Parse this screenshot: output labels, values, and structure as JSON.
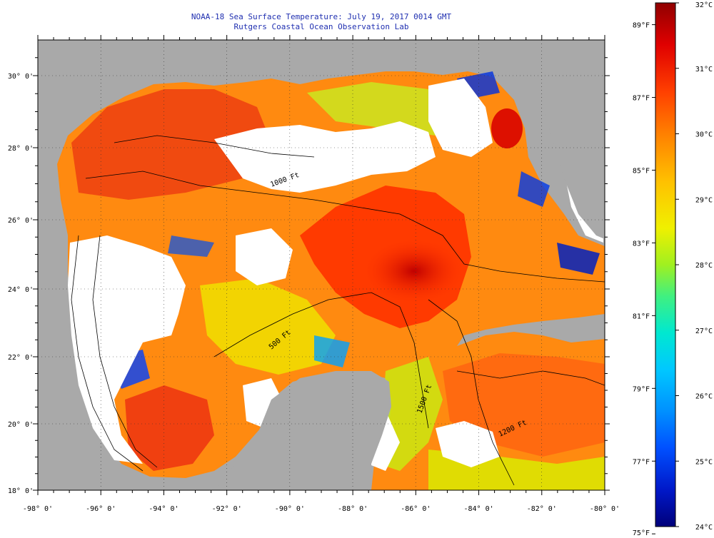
{
  "title": "NOAA-18 Sea Surface Temperature:  July 19, 2017 0014 GMT",
  "subtitle": "Rutgers Coastal Ocean Observation Lab",
  "map": {
    "lon_range": [
      -98,
      -80
    ],
    "lat_range": [
      18,
      31
    ],
    "lon_labels": [
      "-98° 0'",
      "-96° 0'",
      "-94° 0'",
      "-92° 0'",
      "-90° 0'",
      "-88° 0'",
      "-86° 0'",
      "-84° 0'",
      "-82° 0'",
      "-80° 0'"
    ],
    "lat_labels": [
      "18° 0'",
      "20° 0'",
      "22° 0'",
      "24° 0'",
      "26° 0'",
      "28° 0'",
      "30° 0'"
    ],
    "land_color": "#a9a9a9",
    "cloud_color": "#ffffff",
    "contour_labels": [
      "500 Ft",
      "1000 Ft",
      "1200 Ft",
      "1500 Ft"
    ]
  },
  "colorbar": {
    "celsius_labels": [
      "32°C",
      "31°C",
      "30°C",
      "29°C",
      "28°C",
      "27°C",
      "26°C",
      "25°C",
      "24°C"
    ],
    "fahrenheit_labels": [
      "89°F",
      "87°F",
      "85°F",
      "83°F",
      "81°F",
      "79°F",
      "77°F",
      "75°F"
    ],
    "colors": [
      "#00007a",
      "#0018c8",
      "#0050ff",
      "#0090ff",
      "#00c8ff",
      "#00e8d0",
      "#40f080",
      "#a0f020",
      "#f0f000",
      "#ffc000",
      "#ff8000",
      "#ff4000",
      "#e00000",
      "#900000"
    ]
  }
}
